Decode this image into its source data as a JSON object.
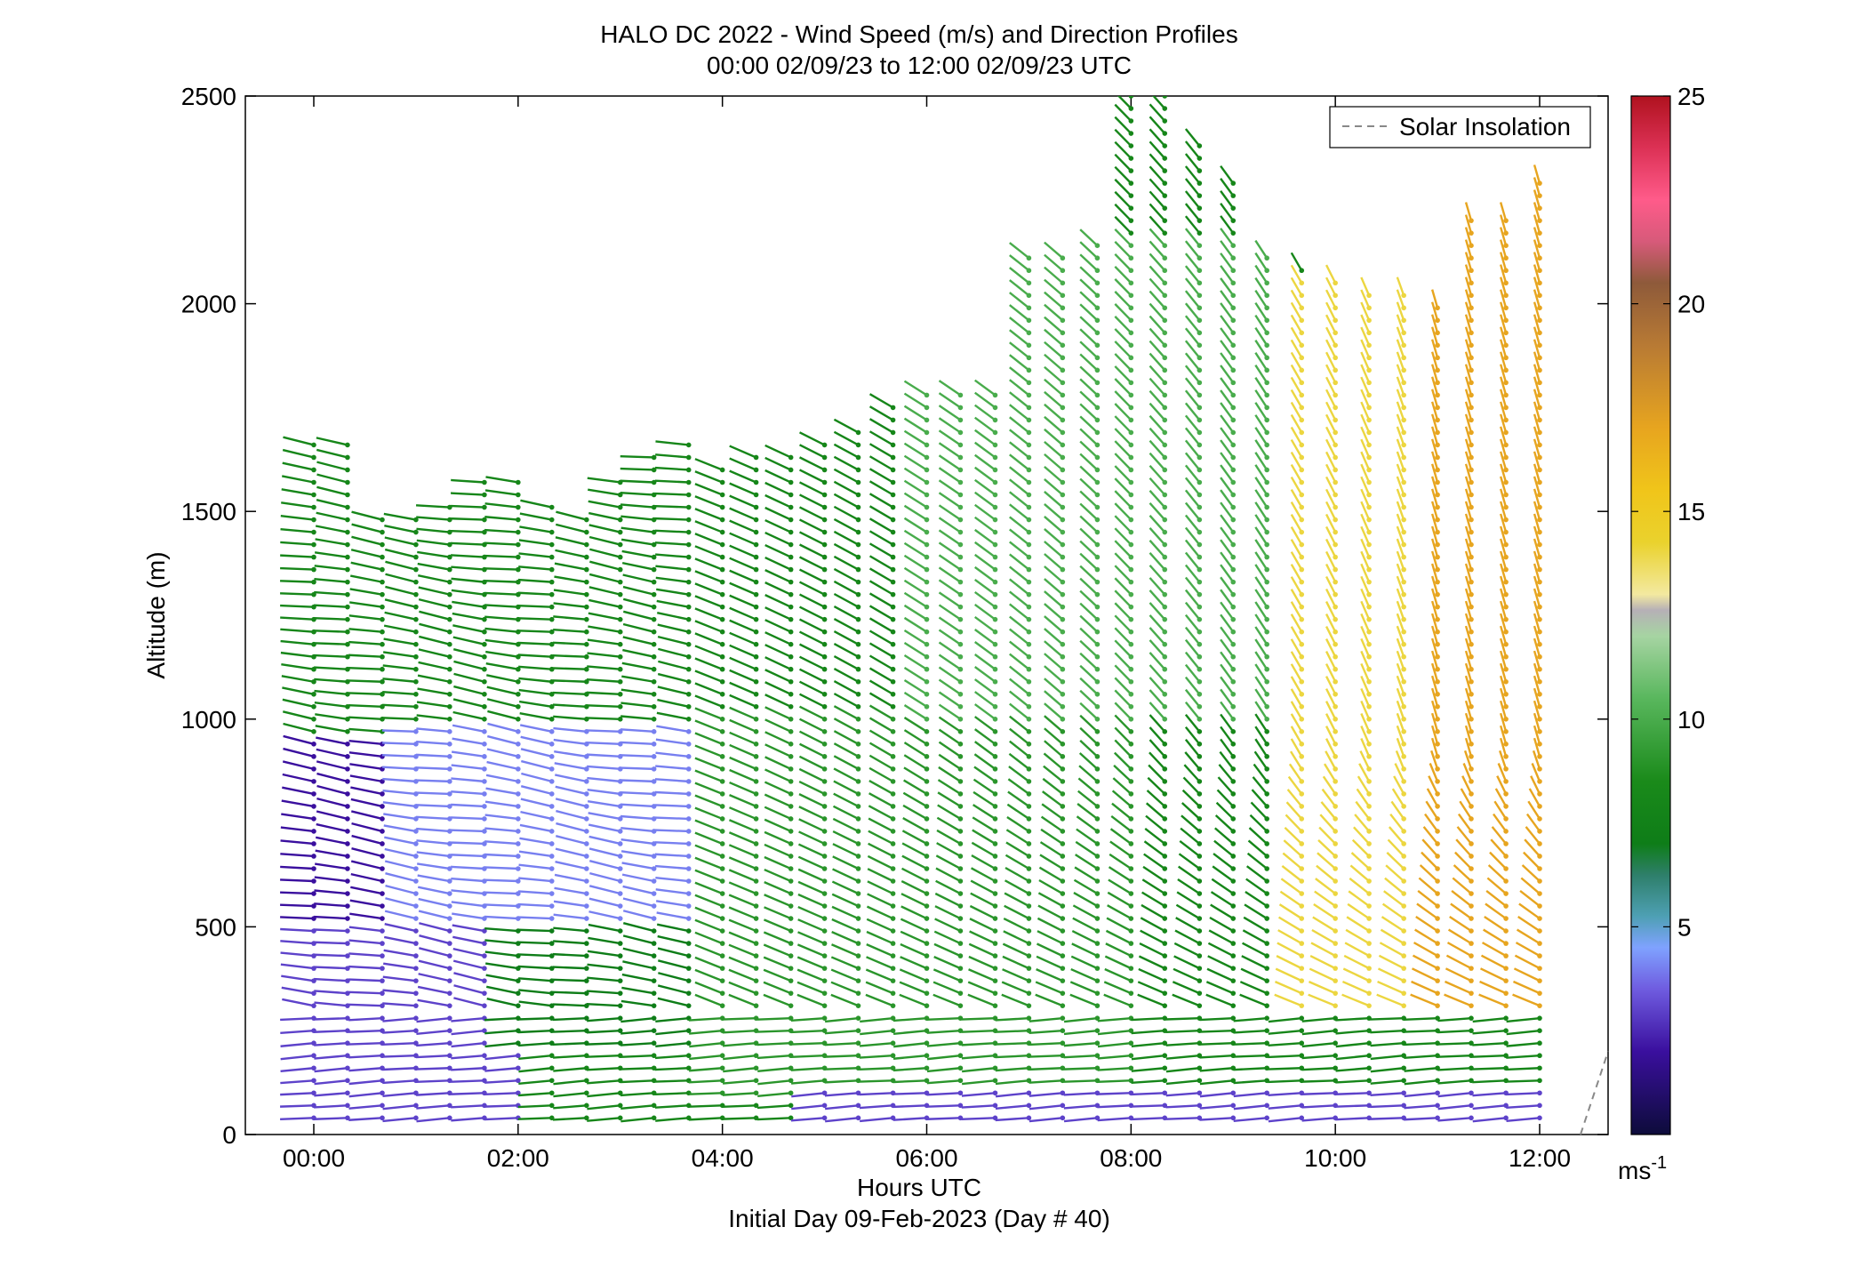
{
  "chart_data": {
    "type": "wind-barb-profile",
    "title": "HALO DC 2022 - Wind Speed (m/s) and Direction Profiles",
    "subtitle": "00:00 02/09/23 to 12:00 02/09/23  UTC",
    "xlabel": "Hours UTC",
    "xlabel2": "Initial Day 09-Feb-2023 (Day # 40)",
    "ylabel": "Altitude (m)",
    "x_ticks": [
      "00:00",
      "02:00",
      "04:00",
      "06:00",
      "08:00",
      "10:00",
      "12:00"
    ],
    "x_tick_hours": [
      0,
      2,
      4,
      6,
      8,
      10,
      12
    ],
    "xlim_hours": [
      -0.67,
      12.67
    ],
    "y_ticks": [
      "0",
      "500",
      "1000",
      "1500",
      "2000",
      "2500"
    ],
    "y_tick_values": [
      0,
      500,
      1000,
      1500,
      2000,
      2500
    ],
    "ylim": [
      0,
      2500
    ],
    "colorbar": {
      "ticks": [
        "5",
        "10",
        "15",
        "20",
        "25"
      ],
      "tick_values": [
        5,
        10,
        15,
        20,
        25
      ],
      "range": [
        0,
        25
      ],
      "unit_label": "ms",
      "unit_exponent": "-1"
    },
    "legend": {
      "entries": [
        {
          "label": "Solar Insolation",
          "style": "dashed",
          "color": "#888888"
        }
      ],
      "placement": "top-right"
    },
    "profile_columns_hours": [
      0.0,
      0.33,
      0.67,
      1.0,
      1.33,
      1.67,
      2.0,
      2.33,
      2.67,
      3.0,
      3.33,
      3.67,
      4.0,
      4.33,
      4.67,
      5.0,
      5.33,
      5.67,
      6.0,
      6.33,
      6.67,
      7.0,
      7.33,
      7.67,
      8.0,
      8.33,
      8.67,
      9.0,
      9.33,
      9.67,
      10.0,
      10.33,
      10.67,
      11.0,
      11.33,
      11.67,
      12.0
    ],
    "profile_top_altitude_m": [
      1680,
      1660,
      1500,
      1500,
      1530,
      1570,
      1570,
      1530,
      1500,
      1570,
      1650,
      1670,
      1620,
      1650,
      1650,
      1660,
      1710,
      1770,
      1790,
      1780,
      1780,
      2110,
      2130,
      2150,
      2500,
      2500,
      2400,
      2300,
      2130,
      2080,
      2060,
      2030,
      2030,
      2000,
      2200,
      2210,
      2290
    ],
    "speed_zones": [
      {
        "hours": [
          0,
          2
        ],
        "altitude_m": [
          0,
          500
        ],
        "speed_ms": 3
      },
      {
        "hours": [
          0,
          1
        ],
        "altitude_m": [
          500,
          950
        ],
        "speed_ms": 2
      },
      {
        "hours": [
          1,
          4
        ],
        "altitude_m": [
          500,
          1000
        ],
        "speed_ms": 4
      },
      {
        "hours": [
          2,
          5
        ],
        "altitude_m": [
          200,
          500
        ],
        "speed_ms": 7
      },
      {
        "hours": [
          0,
          6
        ],
        "altitude_m": [
          1000,
          1700
        ],
        "speed_ms": 8
      },
      {
        "hours": [
          4,
          8
        ],
        "altitude_m": [
          100,
          1000
        ],
        "speed_ms": 9
      },
      {
        "hours": [
          6,
          9.5
        ],
        "altitude_m": [
          1000,
          2150
        ],
        "speed_ms": 10
      },
      {
        "hours": [
          9.5,
          11
        ],
        "altitude_m": [
          300,
          2050
        ],
        "speed_ms": 14
      },
      {
        "hours": [
          11,
          12
        ],
        "altitude_m": [
          300,
          2300
        ],
        "speed_ms": 17
      },
      {
        "hours": [
          5,
          12
        ],
        "altitude_m": [
          0,
          100
        ],
        "speed_ms": 3
      }
    ],
    "solar_insolation_segment": {
      "hours": [
        12.4,
        12.67
      ],
      "altitude_m": [
        0,
        200
      ]
    }
  }
}
